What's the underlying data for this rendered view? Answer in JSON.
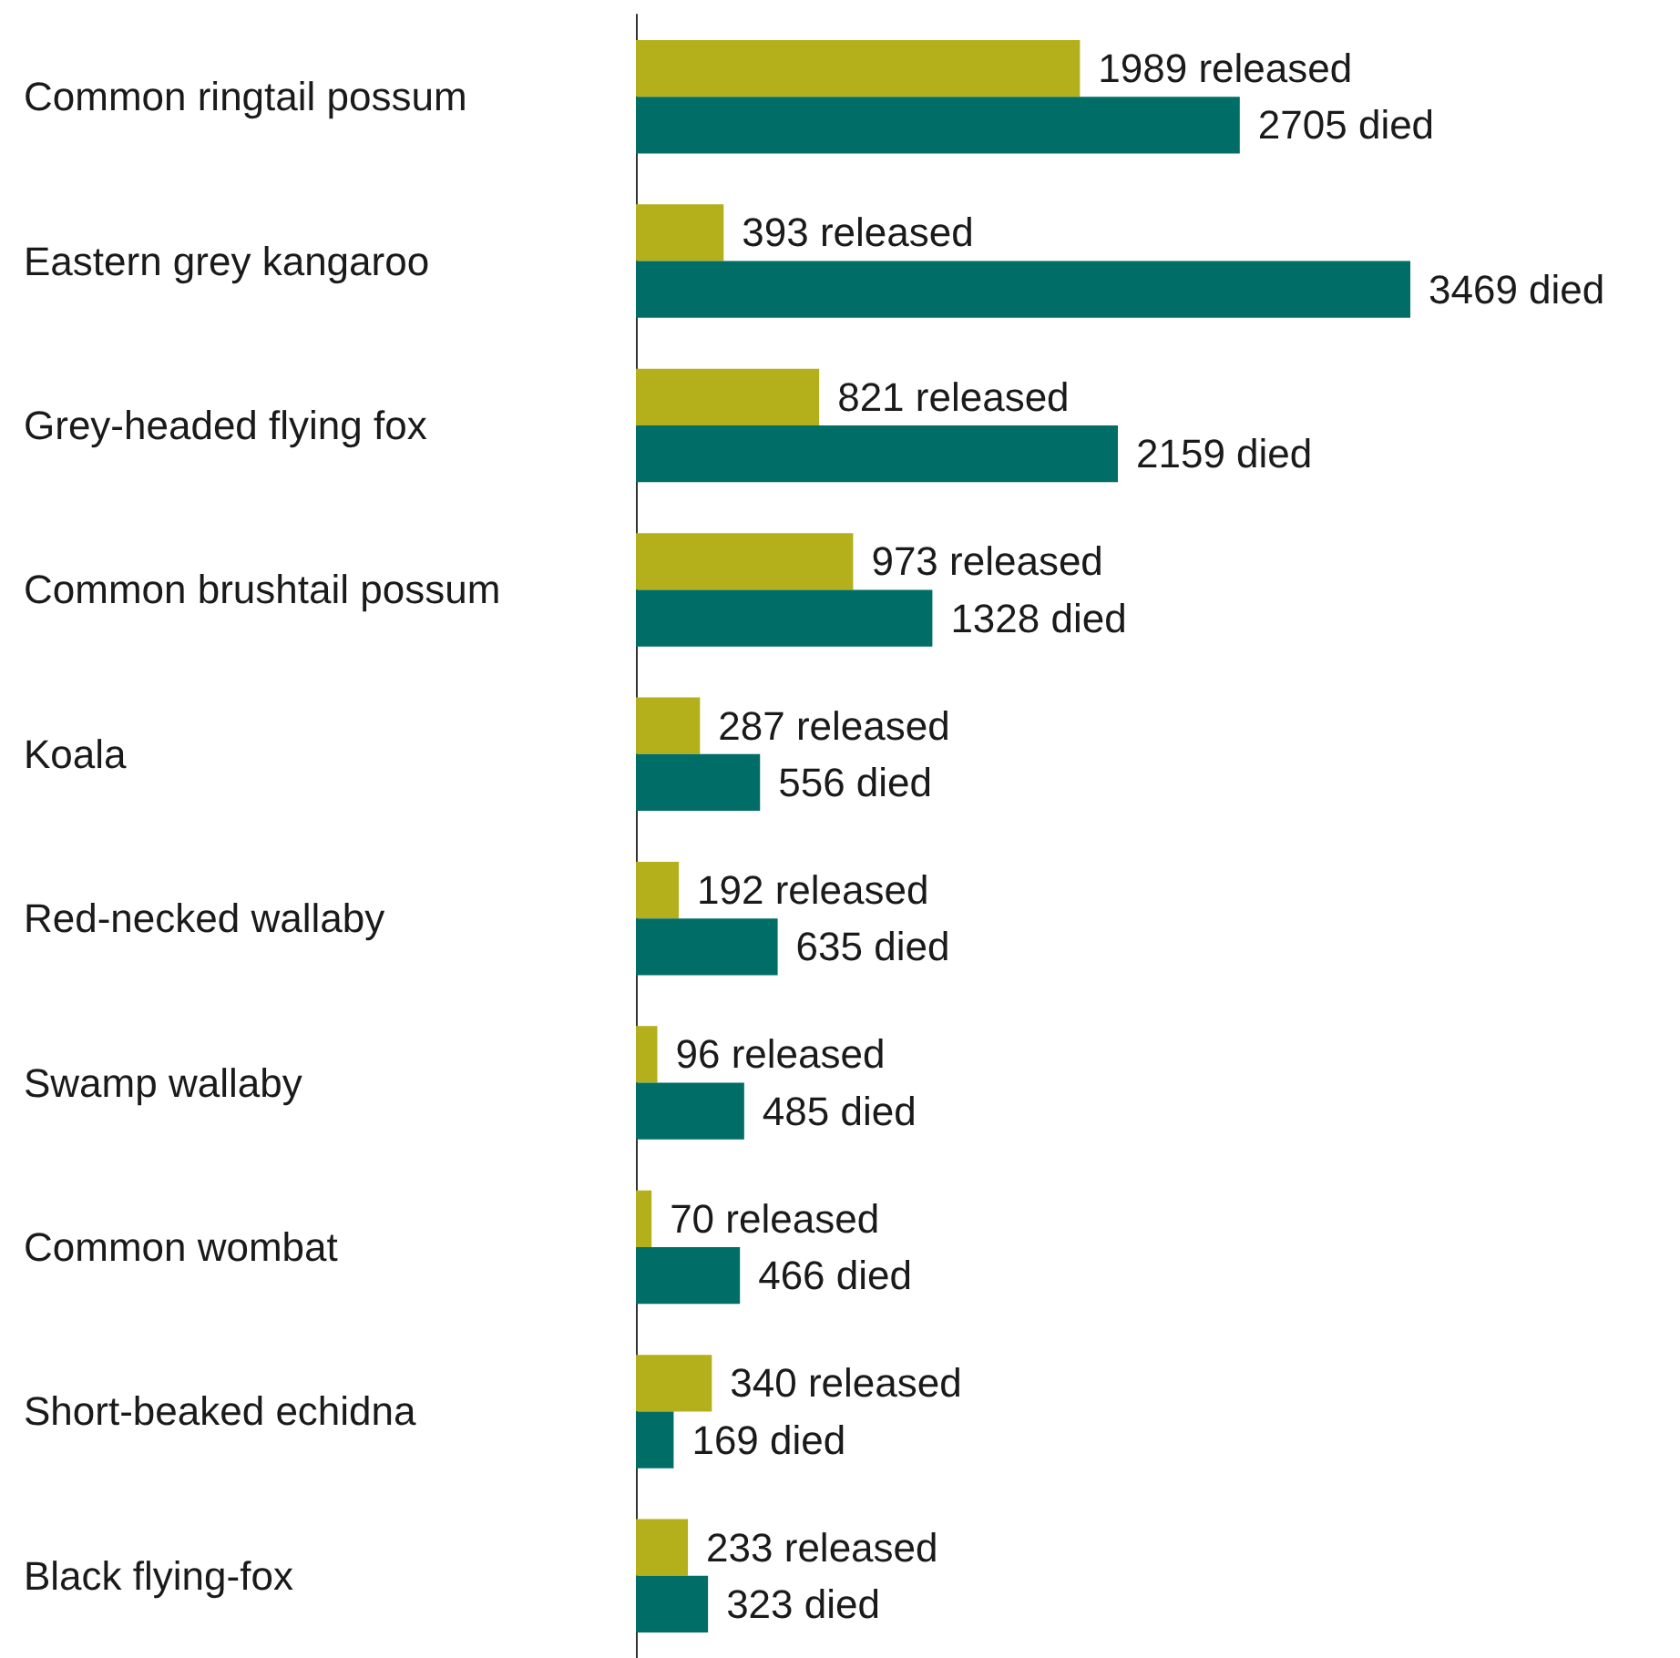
{
  "chart_data": {
    "type": "bar",
    "orientation": "horizontal",
    "categories": [
      "Common ringtail possum",
      "Eastern grey kangaroo",
      "Grey-headed flying fox",
      "Common brushtail possum",
      "Koala",
      "Red-necked wallaby",
      "Swamp wallaby",
      "Common wombat",
      "Short-beaked echidna",
      "Black flying-fox"
    ],
    "series": [
      {
        "color": "#b3b01c",
        "values": [
          1989,
          393,
          821,
          973,
          287,
          192,
          96,
          70,
          340,
          233
        ],
        "value_labels": [
          "1989 released",
          "393 released",
          "821 released",
          "973 released",
          "287 released",
          "192 released",
          "96 released",
          "70 released",
          "340 released",
          "233 released"
        ]
      },
      {
        "color": "#006e66",
        "values": [
          2705,
          3469,
          2159,
          1328,
          556,
          635,
          485,
          466,
          169,
          323
        ],
        "value_labels": [
          "2705 died",
          "3469 died",
          "2159 died",
          "1328 died",
          "556 died",
          "635 died",
          "485 died",
          "466 died",
          "169 died",
          "323 died"
        ]
      }
    ],
    "tick_labels": "y"
  }
}
